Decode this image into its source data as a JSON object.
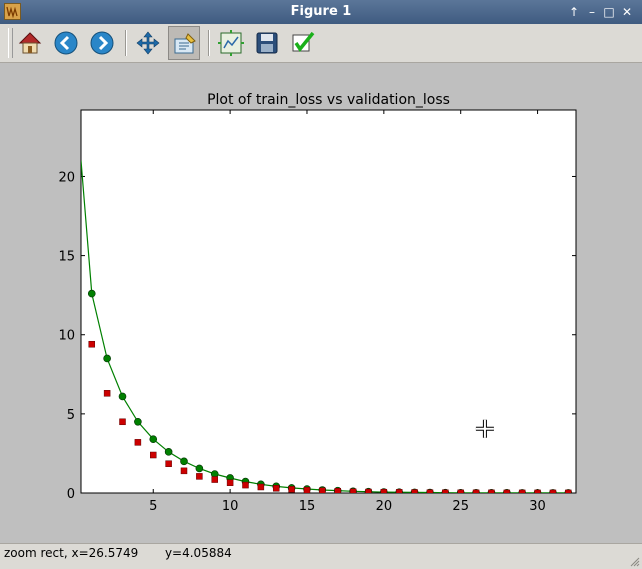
{
  "window": {
    "title": "Figure 1",
    "controls": {
      "up": "↑",
      "minimize": "–",
      "maximize": "□",
      "close": "✕"
    }
  },
  "toolbar": {
    "buttons": [
      {
        "name": "home",
        "icon": "home-icon"
      },
      {
        "name": "back",
        "icon": "arrow-left-icon"
      },
      {
        "name": "forward",
        "icon": "arrow-right-icon"
      },
      {
        "name": "pan",
        "icon": "move-arrows-icon"
      },
      {
        "name": "zoom",
        "icon": "zoom-rect-icon",
        "active": true
      },
      {
        "name": "subplots",
        "icon": "subplots-config-icon"
      },
      {
        "name": "save",
        "icon": "floppy-disk-icon"
      },
      {
        "name": "edit",
        "icon": "checkmark-icon"
      }
    ]
  },
  "status": {
    "text": "zoom rect, x=26.5749       y=4.05884"
  },
  "chart_data": {
    "type": "line",
    "title": "Plot of train_loss vs validation_loss",
    "xlabel": "",
    "ylabel": "",
    "xlim": [
      0.3,
      32.5
    ],
    "ylim": [
      0,
      24.2
    ],
    "xticks": [
      5,
      10,
      15,
      20,
      25,
      30
    ],
    "yticks": [
      0,
      5,
      10,
      15,
      20
    ],
    "grid": false,
    "series": [
      {
        "color": "#008000",
        "marker": "circle",
        "line": true,
        "x": [
          1,
          2,
          3,
          4,
          5,
          6,
          7,
          8,
          9,
          10,
          11,
          12,
          13,
          14,
          15,
          16,
          17,
          18,
          19,
          20,
          21,
          22,
          23,
          24,
          25,
          26,
          27,
          28,
          29,
          30,
          31,
          32
        ],
        "y": [
          12.6,
          8.5,
          6.1,
          4.5,
          3.4,
          2.6,
          2.0,
          1.55,
          1.2,
          0.95,
          0.72,
          0.55,
          0.42,
          0.32,
          0.25,
          0.19,
          0.15,
          0.11,
          0.08,
          0.06,
          0.05,
          0.04,
          0.03,
          0.02,
          0.015,
          0.01,
          0.01,
          0.01,
          0.005,
          0.005,
          0.005,
          0.005
        ],
        "curve_start": [
          0.3,
          21.0
        ]
      },
      {
        "color": "#cc0000",
        "marker": "square",
        "line": false,
        "x": [
          1,
          2,
          3,
          4,
          5,
          6,
          7,
          8,
          9,
          10,
          11,
          12,
          13,
          14,
          15,
          16,
          17,
          18,
          19,
          20,
          21,
          22,
          23,
          24,
          25,
          26,
          27,
          28,
          29,
          30,
          31,
          32
        ],
        "y": [
          9.4,
          6.3,
          4.5,
          3.2,
          2.4,
          1.85,
          1.4,
          1.05,
          0.85,
          0.65,
          0.5,
          0.38,
          0.3,
          0.23,
          0.18,
          0.14,
          0.11,
          0.08,
          0.06,
          0.05,
          0.04,
          0.03,
          0.02,
          0.015,
          0.01,
          0.01,
          0.01,
          0.005,
          0.005,
          0.005,
          0.005,
          0.005
        ]
      }
    ],
    "cursor": {
      "x": 26.5749,
      "y": 4.05884
    }
  }
}
